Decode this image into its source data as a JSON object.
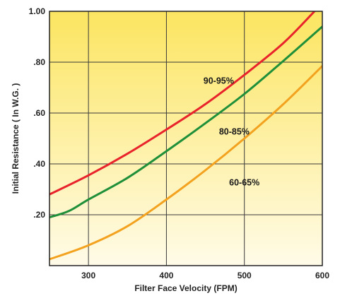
{
  "chart_data": {
    "type": "line",
    "title": "",
    "xlabel": "Filter Face Velocity  (FPM)",
    "ylabel": "Initial Resistance ( In W.G. )",
    "xlim": [
      250,
      600
    ],
    "ylim": [
      0,
      1.0
    ],
    "x_ticks": [
      300,
      400,
      500,
      600
    ],
    "x_tick_labels": [
      "300",
      "400",
      "500",
      "600"
    ],
    "y_ticks": [
      0.2,
      0.4,
      0.6,
      0.8,
      1.0
    ],
    "y_tick_labels": [
      ".20",
      ".40",
      ".60",
      ".80",
      "1.00"
    ],
    "grid": true,
    "background_gradient": [
      "#fce560",
      "#fffbe8"
    ],
    "series": [
      {
        "name": "90-95%",
        "color": "#e8232b",
        "x": [
          250,
          300,
          350,
          400,
          450,
          500,
          550,
          590
        ],
        "y": [
          0.28,
          0.355,
          0.44,
          0.535,
          0.635,
          0.75,
          0.875,
          1.0
        ]
      },
      {
        "name": "80-85%",
        "color": "#1f8f3a",
        "x": [
          250,
          275,
          300,
          350,
          400,
          450,
          500,
          550,
          600
        ],
        "y": [
          0.19,
          0.215,
          0.26,
          0.345,
          0.45,
          0.56,
          0.675,
          0.805,
          0.94
        ]
      },
      {
        "name": "60-65%",
        "color": "#f3a21f",
        "x": [
          250,
          300,
          350,
          400,
          450,
          500,
          550,
          600
        ],
        "y": [
          0.025,
          0.08,
          0.155,
          0.26,
          0.375,
          0.5,
          0.635,
          0.785
        ]
      }
    ],
    "annotations": [
      {
        "text": "90-95%",
        "x": 467,
        "y": 0.715
      },
      {
        "text": "80-85%",
        "x": 487,
        "y": 0.515
      },
      {
        "text": "60-65%",
        "x": 500,
        "y": 0.315
      }
    ]
  }
}
